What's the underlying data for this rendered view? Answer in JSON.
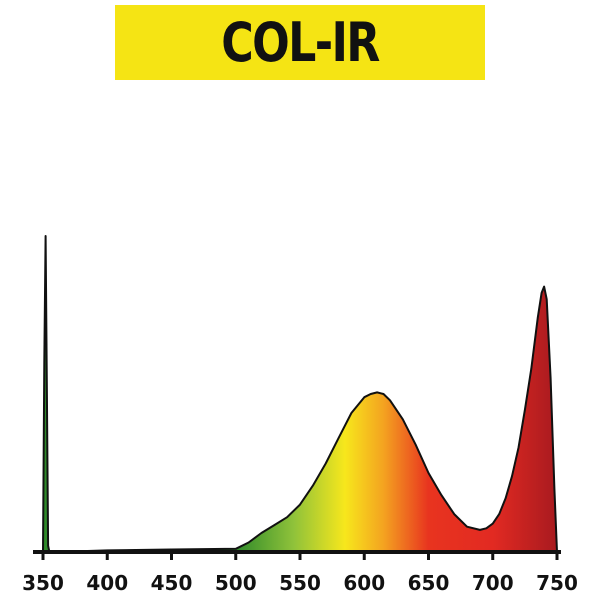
{
  "title": "COL-IR",
  "colors": {
    "banner": "#f5e414",
    "title_text": "#111111",
    "axis": "#111111",
    "spectrum_gradient": [
      {
        "nm": 500,
        "color": "#2f8a2a"
      },
      {
        "nm": 545,
        "color": "#8fc23a"
      },
      {
        "nm": 585,
        "color": "#f7e71c"
      },
      {
        "nm": 615,
        "color": "#f4a320"
      },
      {
        "nm": 650,
        "color": "#e8341f"
      },
      {
        "nm": 700,
        "color": "#e22a22"
      },
      {
        "nm": 750,
        "color": "#a81a1f"
      }
    ]
  },
  "chart_data": {
    "type": "area",
    "title": "COL-IR",
    "xlabel": "",
    "ylabel": "",
    "xlim": [
      350,
      750
    ],
    "ylim": [
      0,
      1
    ],
    "grid": false,
    "x_ticks": [
      350,
      400,
      450,
      500,
      550,
      600,
      650,
      700,
      750
    ],
    "x_tick_labels": [
      "350",
      "400",
      "450",
      "500",
      "550",
      "600",
      "650",
      "700",
      "750"
    ],
    "series": [
      {
        "x": [
          350,
          351,
          352,
          353,
          354,
          355,
          360,
          400,
          450,
          500,
          510,
          520,
          530,
          540,
          550,
          560,
          570,
          580,
          590,
          600,
          605,
          610,
          615,
          620,
          630,
          640,
          650,
          660,
          670,
          680,
          690,
          695,
          700,
          705,
          710,
          715,
          720,
          725,
          730,
          735,
          738,
          740,
          742,
          745,
          748,
          750
        ],
        "y": [
          0.0,
          0.6,
          1.0,
          0.5,
          0.02,
          0.0,
          0.0,
          0.005,
          0.008,
          0.01,
          0.03,
          0.06,
          0.085,
          0.11,
          0.15,
          0.21,
          0.28,
          0.36,
          0.44,
          0.49,
          0.5,
          0.505,
          0.5,
          0.48,
          0.42,
          0.34,
          0.25,
          0.18,
          0.12,
          0.08,
          0.07,
          0.075,
          0.09,
          0.12,
          0.17,
          0.24,
          0.33,
          0.45,
          0.58,
          0.74,
          0.82,
          0.84,
          0.8,
          0.55,
          0.2,
          0.0
        ]
      }
    ]
  }
}
